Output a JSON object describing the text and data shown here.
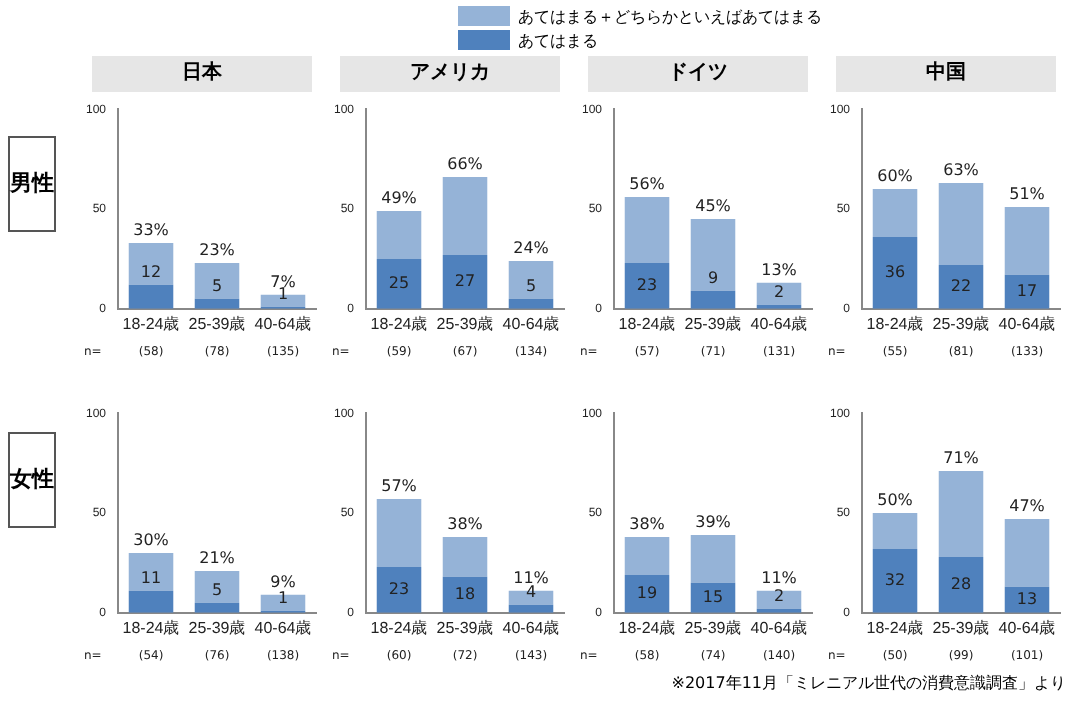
{
  "chart_data": [
    {
      "type": "bar",
      "title": "日本",
      "ylabel": "男性",
      "categories": [
        "18-24歳",
        "25-39歳",
        "40-64歳"
      ],
      "stacked": true,
      "legend": "top right",
      "ylim": [
        0,
        100
      ],
      "yticks": [
        0,
        50,
        100
      ],
      "series": [
        {
          "name": "あてはまる",
          "color": "#4f81bd",
          "values": [
            12,
            5,
            1
          ],
          "value_labels": [
            "12",
            "5",
            "1"
          ]
        },
        {
          "name": "あてはまる＋どちらかといえばあてはまる",
          "color": "#95b3d7",
          "values": [
            21,
            18,
            6
          ]
        }
      ],
      "totals": [
        "33%",
        "23%",
        "7%"
      ],
      "annotations": [
        "n=",
        "(58)",
        "(78)",
        "(135)"
      ]
    },
    {
      "type": "bar",
      "title": "アメリカ",
      "categories": [
        "18-24歳",
        "25-39歳",
        "40-64歳"
      ],
      "stacked": true,
      "ylim": [
        0,
        100
      ],
      "yticks": [
        0,
        50,
        100
      ],
      "series": [
        {
          "color": "#4f81bd",
          "values": [
            25,
            27,
            5
          ],
          "value_labels": [
            "25",
            "27",
            "5"
          ]
        },
        {
          "color": "#95b3d7",
          "values": [
            24,
            39,
            19
          ]
        }
      ],
      "totals": [
        "49%",
        "66%",
        "24%"
      ],
      "annotations": [
        "n=",
        "(59)",
        "(67)",
        "(134)"
      ]
    },
    {
      "type": "bar",
      "title": "ドイツ",
      "categories": [
        "18-24歳",
        "25-39歳",
        "40-64歳"
      ],
      "stacked": true,
      "ylim": [
        0,
        100
      ],
      "yticks": [
        0,
        50,
        100
      ],
      "series": [
        {
          "color": "#4f81bd",
          "values": [
            23,
            9,
            2
          ],
          "value_labels": [
            "23",
            "9",
            "2"
          ]
        },
        {
          "color": "#95b3d7",
          "values": [
            33,
            36,
            11
          ]
        }
      ],
      "totals": [
        "56%",
        "45%",
        "13%"
      ],
      "annotations": [
        "n=",
        "(57)",
        "(71)",
        "(131)"
      ]
    },
    {
      "type": "bar",
      "title": "中国",
      "categories": [
        "18-24歳",
        "25-39歳",
        "40-64歳"
      ],
      "stacked": true,
      "ylim": [
        0,
        100
      ],
      "yticks": [
        0,
        50,
        100
      ],
      "series": [
        {
          "color": "#4f81bd",
          "values": [
            36,
            22,
            17
          ],
          "value_labels": [
            "36",
            "22",
            "17"
          ]
        },
        {
          "color": "#95b3d7",
          "values": [
            24,
            41,
            34
          ]
        }
      ],
      "totals": [
        "60%",
        "63%",
        "51%"
      ],
      "annotations": [
        "n=",
        "(55)",
        "(81)",
        "(133)"
      ]
    },
    {
      "type": "bar",
      "ylabel": "女性",
      "categories": [
        "18-24歳",
        "25-39歳",
        "40-64歳"
      ],
      "stacked": true,
      "ylim": [
        0,
        100
      ],
      "yticks": [
        0,
        50,
        100
      ],
      "series": [
        {
          "color": "#4f81bd",
          "values": [
            11,
            5,
            1
          ],
          "value_labels": [
            "11",
            "5",
            "1"
          ]
        },
        {
          "color": "#95b3d7",
          "values": [
            19,
            16,
            8
          ]
        }
      ],
      "totals": [
        "30%",
        "21%",
        "9%"
      ],
      "annotations": [
        "n=",
        "(54)",
        "(76)",
        "(138)"
      ]
    },
    {
      "type": "bar",
      "categories": [
        "18-24歳",
        "25-39歳",
        "40-64歳"
      ],
      "stacked": true,
      "ylim": [
        0,
        100
      ],
      "yticks": [
        0,
        50,
        100
      ],
      "series": [
        {
          "color": "#4f81bd",
          "values": [
            23,
            18,
            4
          ],
          "value_labels": [
            "23",
            "18",
            "4"
          ]
        },
        {
          "color": "#95b3d7",
          "values": [
            34,
            20,
            7
          ]
        }
      ],
      "totals": [
        "57%",
        "38%",
        "11%"
      ],
      "annotations": [
        "n=",
        "(60)",
        "(72)",
        "(143)"
      ]
    },
    {
      "type": "bar",
      "categories": [
        "18-24歳",
        "25-39歳",
        "40-64歳"
      ],
      "stacked": true,
      "ylim": [
        0,
        100
      ],
      "yticks": [
        0,
        50,
        100
      ],
      "series": [
        {
          "color": "#4f81bd",
          "values": [
            19,
            15,
            2
          ],
          "value_labels": [
            "19",
            "15",
            "2"
          ]
        },
        {
          "color": "#95b3d7",
          "values": [
            19,
            24,
            9
          ]
        }
      ],
      "totals": [
        "38%",
        "39%",
        "11%"
      ],
      "annotations": [
        "n=",
        "(58)",
        "(74)",
        "(140)"
      ]
    },
    {
      "type": "bar",
      "categories": [
        "18-24歳",
        "25-39歳",
        "40-64歳"
      ],
      "stacked": true,
      "ylim": [
        0,
        100
      ],
      "yticks": [
        0,
        50,
        100
      ],
      "series": [
        {
          "color": "#4f81bd",
          "values": [
            32,
            28,
            13
          ],
          "value_labels": [
            "32",
            "28",
            "13"
          ]
        },
        {
          "color": "#95b3d7",
          "values": [
            18,
            43,
            34
          ]
        }
      ],
      "totals": [
        "50%",
        "71%",
        "47%"
      ],
      "annotations": [
        "n=",
        "(50)",
        "(99)",
        "(101)"
      ]
    },
    {
      "type": "other",
      "annotations": [
        "※2017年11月「ミレニアル世代の消費意識調査」より"
      ]
    }
  ]
}
